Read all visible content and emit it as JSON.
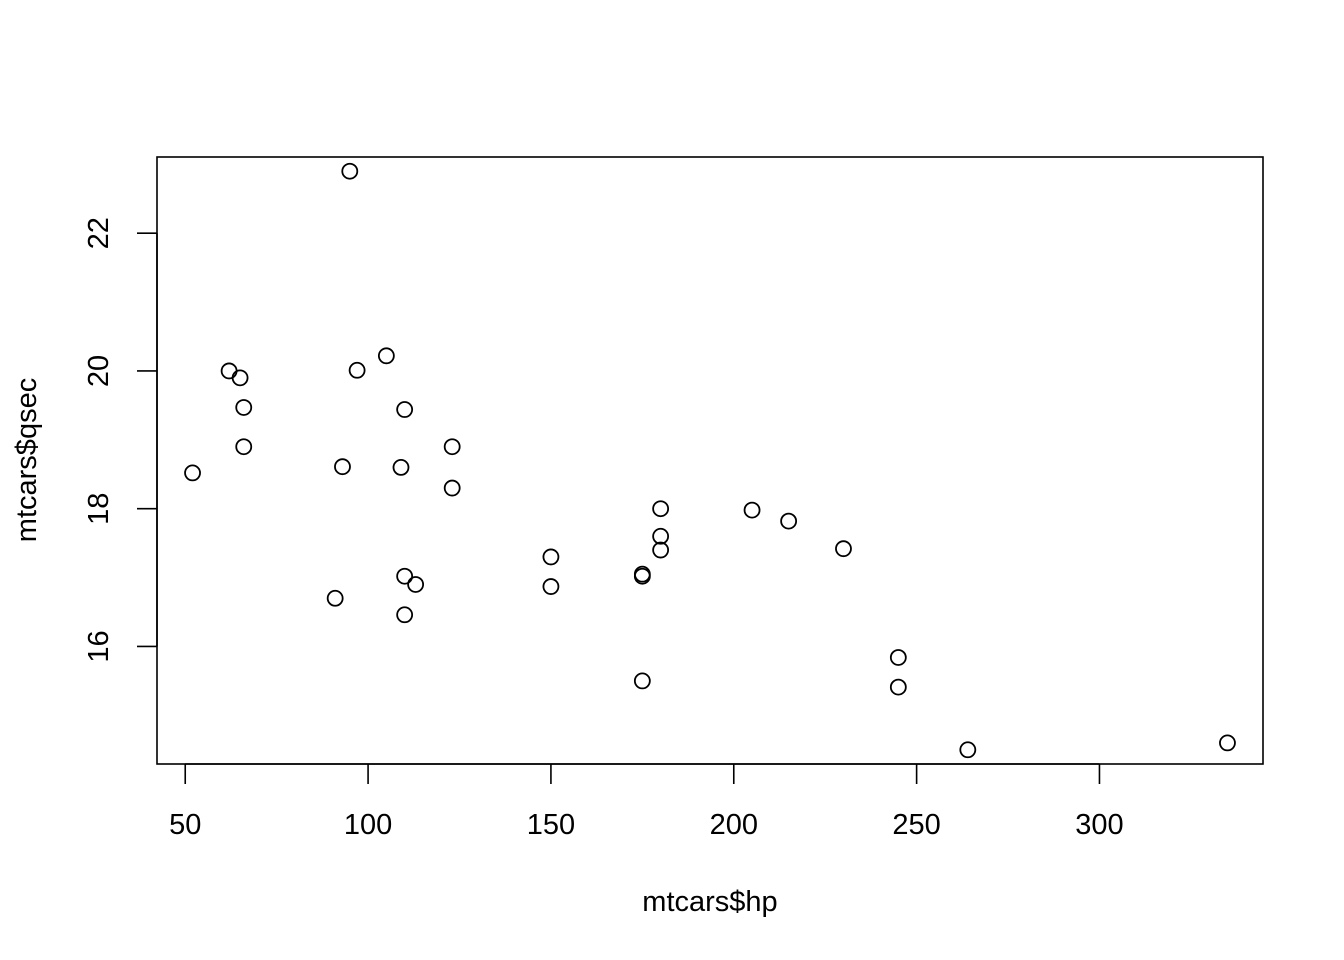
{
  "chart_data": {
    "type": "scatter",
    "title": "",
    "xlabel": "mtcars$hp",
    "ylabel": "mtcars$qsec",
    "xlim": [
      42.28,
      344.72
    ],
    "ylim": [
      14.2936,
      23.1064
    ],
    "xticks": [
      50,
      100,
      150,
      200,
      250,
      300
    ],
    "yticks": [
      16,
      18,
      20,
      22
    ],
    "grid": false,
    "legend": "none",
    "series": [
      {
        "x": [
          110,
          110,
          93,
          110,
          175,
          105,
          245,
          62,
          95,
          123,
          123,
          180,
          180,
          180,
          205,
          215,
          230,
          66,
          52,
          65,
          97,
          150,
          150,
          245,
          175,
          66,
          91,
          113,
          264,
          175,
          335,
          109
        ],
        "y": [
          16.46,
          17.02,
          18.61,
          19.44,
          17.02,
          20.22,
          15.84,
          20.0,
          22.9,
          18.3,
          18.9,
          17.4,
          17.6,
          18.0,
          17.98,
          17.82,
          17.42,
          19.47,
          18.52,
          19.9,
          20.01,
          16.87,
          17.3,
          15.41,
          17.05,
          18.9,
          16.7,
          16.9,
          14.5,
          15.5,
          14.6,
          18.6
        ]
      }
    ]
  }
}
